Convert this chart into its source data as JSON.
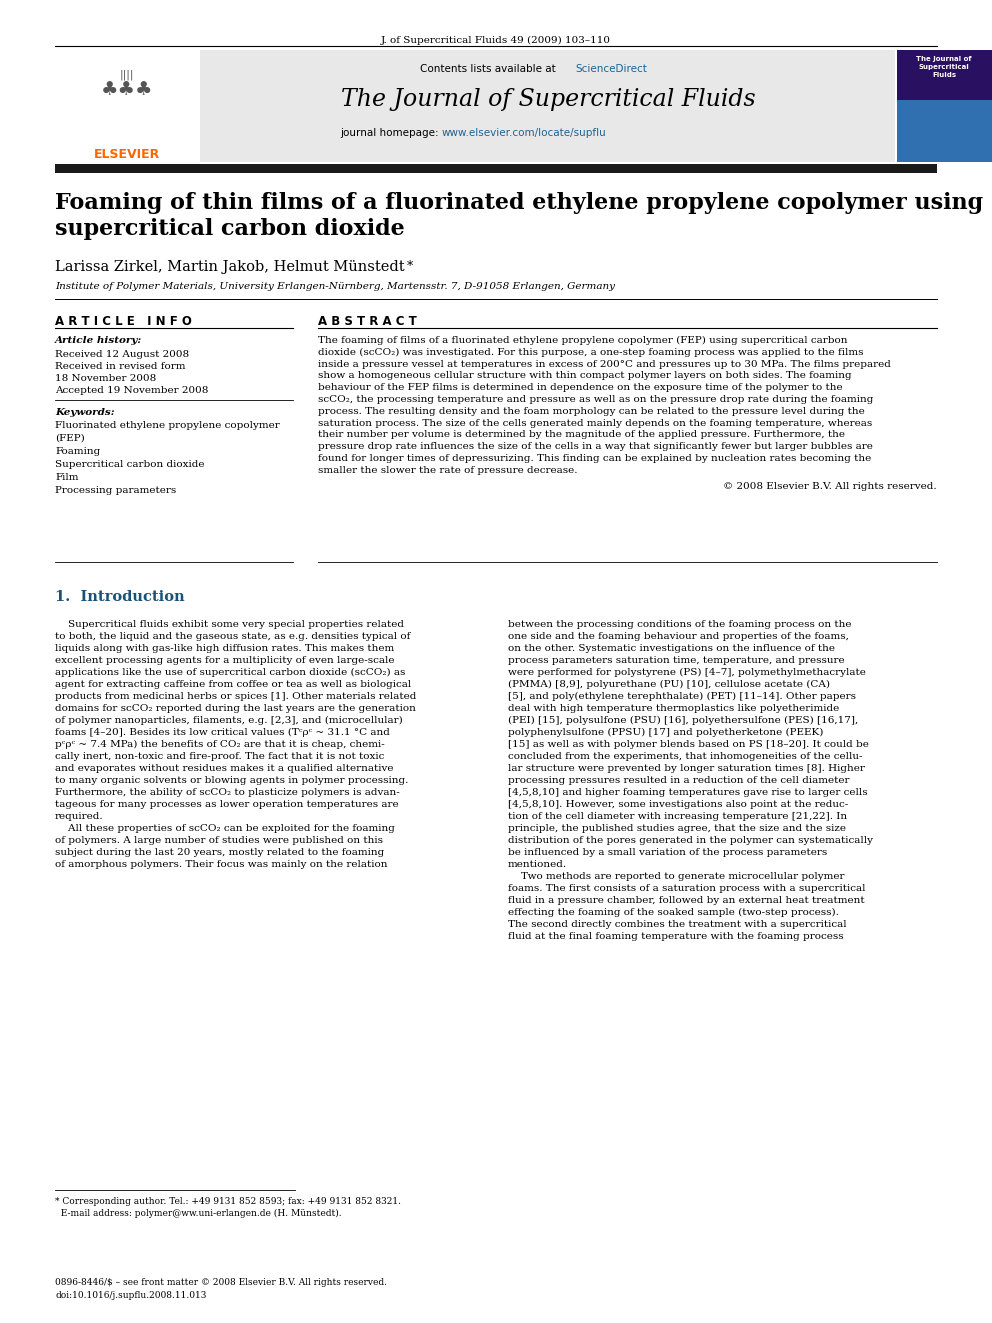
{
  "page_title": "J. of Supercritical Fluids 49 (2009) 103–110",
  "journal_name": "The Journal of Supercritical Fluids",
  "contents_text": "Contents lists available at ScienceDirect",
  "article_title_line1": "Foaming of thin films of a fluorinated ethylene propylene copolymer using",
  "article_title_line2": "supercritical carbon dioxide",
  "authors": "Larissa Zirkel, Martin Jakob, Helmut Münstedt",
  "affiliation": "Institute of Polymer Materials, University Erlangen-Nürnberg, Martensstr. 7, D-91058 Erlangen, Germany",
  "article_info_header": "A R T I C L E   I N F O",
  "abstract_header": "A B S T R A C T",
  "article_history_label": "Article history:",
  "received": "Received 12 August 2008",
  "received_revised": "Received in revised form",
  "received_date": "18 November 2008",
  "accepted": "Accepted 19 November 2008",
  "keywords_label": "Keywords:",
  "keywords": [
    "Fluorinated ethylene propylene copolymer",
    "(FEP)",
    "Foaming",
    "Supercritical carbon dioxide",
    "Film",
    "Processing parameters"
  ],
  "abstract_lines": [
    "The foaming of films of a fluorinated ethylene propylene copolymer (FEP) using supercritical carbon",
    "dioxide (scCO₂) was investigated. For this purpose, a one-step foaming process was applied to the films",
    "inside a pressure vessel at temperatures in excess of 200°C and pressures up to 30 MPa. The films prepared",
    "show a homogeneous cellular structure with thin compact polymer layers on both sides. The foaming",
    "behaviour of the FEP films is determined in dependence on the exposure time of the polymer to the",
    "scCO₂, the processing temperature and pressure as well as on the pressure drop rate during the foaming",
    "process. The resulting density and the foam morphology can be related to the pressure level during the",
    "saturation process. The size of the cells generated mainly depends on the foaming temperature, whereas",
    "their number per volume is determined by the magnitude of the applied pressure. Furthermore, the",
    "pressure drop rate influences the size of the cells in a way that significantly fewer but larger bubbles are",
    "found for longer times of depressurizing. This finding can be explained by nucleation rates becoming the",
    "smaller the slower the rate of pressure decrease."
  ],
  "copyright": "© 2008 Elsevier B.V. All rights reserved.",
  "section1_header": "1.  Introduction",
  "body_col1_lines": [
    "    Supercritical fluids exhibit some very special properties related",
    "to both, the liquid and the gaseous state, as e.g. densities typical of",
    "liquids along with gas-like high diffusion rates. This makes them",
    "excellent processing agents for a multiplicity of even large-scale",
    "applications like the use of supercritical carbon dioxide (scCO₂) as",
    "agent for extracting caffeine from coffee or tea as well as biological",
    "products from medicinal herbs or spices [1]. Other materials related",
    "domains for scCO₂ reported during the last years are the generation",
    "of polymer nanoparticles, filaments, e.g. [2,3], and (microcellular)",
    "foams [4–20]. Besides its low critical values (Tᶜρᶜ ~ 31.1 °C and",
    "pᶜρᶜ ~ 7.4 MPa) the benefits of CO₂ are that it is cheap, chemi-",
    "cally inert, non-toxic and fire-proof. The fact that it is not toxic",
    "and evaporates without residues makes it a qualified alternative",
    "to many organic solvents or blowing agents in polymer processing.",
    "Furthermore, the ability of scCO₂ to plasticize polymers is advan-",
    "tageous for many processes as lower operation temperatures are",
    "required.",
    "    All these properties of scCO₂ can be exploited for the foaming",
    "of polymers. A large number of studies were published on this",
    "subject during the last 20 years, mostly related to the foaming",
    "of amorphous polymers. Their focus was mainly on the relation"
  ],
  "body_col2_lines": [
    "between the processing conditions of the foaming process on the",
    "one side and the foaming behaviour and properties of the foams,",
    "on the other. Systematic investigations on the influence of the",
    "process parameters saturation time, temperature, and pressure",
    "were performed for polystyrene (PS) [4–7], polymethylmethacrylate",
    "(PMMA) [8,9], polyurethane (PU) [10], cellulose acetate (CA)",
    "[5], and poly(ethylene terephthalate) (PET) [11–14]. Other papers",
    "deal with high temperature thermoplastics like polyetherimide",
    "(PEI) [15], polysulfone (PSU) [16], polyethersulfone (PES) [16,17],",
    "polyphenylsulfone (PPSU) [17] and polyetherketone (PEEK)",
    "[15] as well as with polymer blends based on PS [18–20]. It could be",
    "concluded from the experiments, that inhomogeneities of the cellu-",
    "lar structure were prevented by longer saturation times [8]. Higher",
    "processing pressures resulted in a reduction of the cell diameter",
    "[4,5,8,10] and higher foaming temperatures gave rise to larger cells",
    "[4,5,8,10]. However, some investigations also point at the reduc-",
    "tion of the cell diameter with increasing temperature [21,22]. In",
    "principle, the published studies agree, that the size and the size",
    "distribution of the pores generated in the polymer can systematically",
    "be influenced by a small variation of the process parameters",
    "mentioned.",
    "    Two methods are reported to generate microcellular polymer",
    "foams. The first consists of a saturation process with a supercritical",
    "fluid in a pressure chamber, followed by an external heat treatment",
    "effecting the foaming of the soaked sample (two-step process).",
    "The second directly combines the treatment with a supercritical",
    "fluid at the final foaming temperature with the foaming process"
  ],
  "footnote_line1": "* Corresponding author. Tel.: +49 9131 852 8593; fax: +49 9131 852 8321.",
  "footnote_line2": "  E-mail address: polymer@ww.uni-erlangen.de (H. Münstedt).",
  "issn_line": "0896-8446/$ – see front matter © 2008 Elsevier B.V. All rights reserved.",
  "doi_line": "doi:10.1016/j.supflu.2008.11.013",
  "header_bg_color": "#e8e8e8",
  "dark_bar_color": "#1a1a1a",
  "elsevier_orange": "#FF6600",
  "sciencedirect_blue": "#1a6496",
  "link_blue": "#1a6496",
  "intro_blue": "#1a5276"
}
